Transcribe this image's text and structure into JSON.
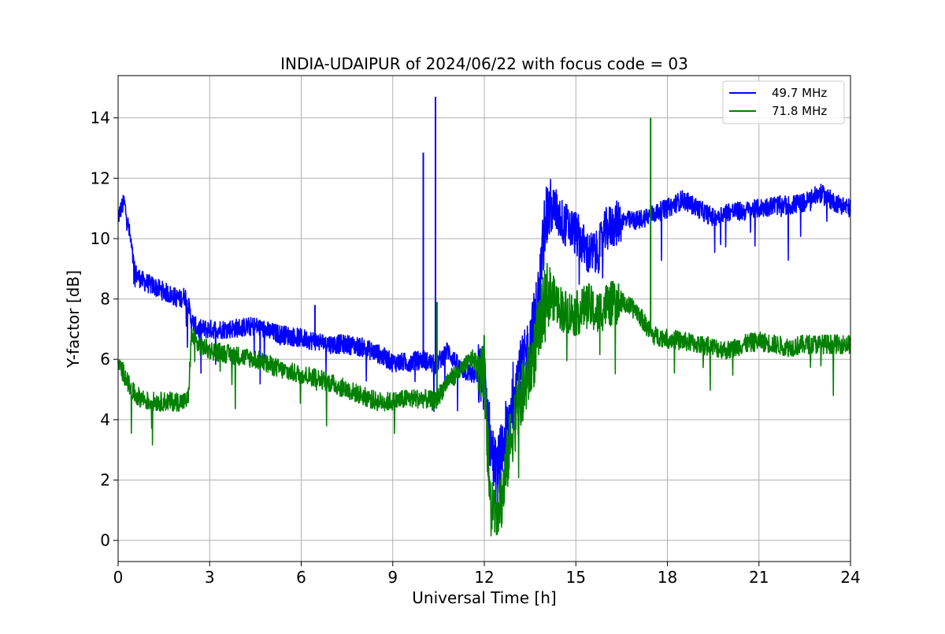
{
  "chart_data": {
    "type": "line",
    "title": "INDIA-UDAIPUR of 2024/06/22 with focus code = 03",
    "xlabel": "Universal Time [h]",
    "ylabel": "Y-factor [dB]",
    "xlim": [
      0,
      24
    ],
    "ylim": [
      -0.7,
      15.4
    ],
    "xticks": [
      0,
      3,
      6,
      9,
      12,
      15,
      18,
      21,
      24
    ],
    "yticks": [
      0,
      2,
      4,
      6,
      8,
      10,
      12,
      14
    ],
    "grid": true,
    "legend_position": "top-right",
    "series": [
      {
        "name": "49.7 MHz",
        "color": "#0000ff",
        "x": [
          0.0,
          0.1,
          0.2,
          0.3,
          0.4,
          0.5,
          0.6,
          0.8,
          1.0,
          1.2,
          1.4,
          1.6,
          1.8,
          2.0,
          2.2,
          2.3,
          2.4,
          2.6,
          3.0,
          3.5,
          4.0,
          4.5,
          5.0,
          5.5,
          6.0,
          6.5,
          7.0,
          7.5,
          8.0,
          8.5,
          9.0,
          9.5,
          10.0,
          10.4,
          10.8,
          11.2,
          11.6,
          12.0,
          12.2,
          12.4,
          12.6,
          12.8,
          13.0,
          13.3,
          13.6,
          13.8,
          14.0,
          14.3,
          14.6,
          15.0,
          15.4,
          15.7,
          16.0,
          16.5,
          17.0,
          17.5,
          18.0,
          18.5,
          19.0,
          19.5,
          20.0,
          20.5,
          21.0,
          21.5,
          22.0,
          22.5,
          23.0,
          23.5,
          24.0
        ],
        "y": [
          10.7,
          11.0,
          11.2,
          10.6,
          10.0,
          9.2,
          8.8,
          8.6,
          8.5,
          8.4,
          8.3,
          8.2,
          8.1,
          8.0,
          8.1,
          7.8,
          7.3,
          7.0,
          7.0,
          7.0,
          7.05,
          7.1,
          6.9,
          6.8,
          6.7,
          6.6,
          6.5,
          6.5,
          6.4,
          6.2,
          5.9,
          5.9,
          6.0,
          5.8,
          6.3,
          5.7,
          5.5,
          5.4,
          3.2,
          2.2,
          3.0,
          4.0,
          5.2,
          5.8,
          7.0,
          8.2,
          10.8,
          11.0,
          10.5,
          10.2,
          9.5,
          9.5,
          10.3,
          10.6,
          10.6,
          10.8,
          11.0,
          11.3,
          11.0,
          10.7,
          10.9,
          10.9,
          11.0,
          11.1,
          11.1,
          11.2,
          11.5,
          11.2,
          11.0
        ]
      },
      {
        "name": "71.8 MHz",
        "color": "#008000",
        "x": [
          0.0,
          0.1,
          0.2,
          0.3,
          0.4,
          0.5,
          0.6,
          0.8,
          1.0,
          1.2,
          1.4,
          1.6,
          1.8,
          2.0,
          2.2,
          2.3,
          2.4,
          2.6,
          3.0,
          3.5,
          4.0,
          4.5,
          5.0,
          5.5,
          6.0,
          6.5,
          7.0,
          7.5,
          8.0,
          8.5,
          9.0,
          9.5,
          10.0,
          10.4,
          10.8,
          11.2,
          11.6,
          12.0,
          12.2,
          12.4,
          12.6,
          12.8,
          13.0,
          13.3,
          13.6,
          13.8,
          14.0,
          14.3,
          14.6,
          15.0,
          15.4,
          15.7,
          16.0,
          16.5,
          17.0,
          17.5,
          18.0,
          18.5,
          19.0,
          19.5,
          20.0,
          20.5,
          21.0,
          21.5,
          22.0,
          22.5,
          23.0,
          23.5,
          24.0
        ],
        "y": [
          5.8,
          5.7,
          5.5,
          5.3,
          5.0,
          4.9,
          4.8,
          4.7,
          4.6,
          4.6,
          4.6,
          4.6,
          4.6,
          4.6,
          4.6,
          4.7,
          6.8,
          6.5,
          6.3,
          6.2,
          6.1,
          6.0,
          5.8,
          5.6,
          5.5,
          5.4,
          5.2,
          5.0,
          4.8,
          4.6,
          4.6,
          4.7,
          4.7,
          4.6,
          5.3,
          5.6,
          6.0,
          5.8,
          1.0,
          1.2,
          1.5,
          3.0,
          4.0,
          5.0,
          6.0,
          7.0,
          8.2,
          8.0,
          7.6,
          7.5,
          7.8,
          7.5,
          7.8,
          7.9,
          7.6,
          6.8,
          6.7,
          6.6,
          6.5,
          6.4,
          6.3,
          6.5,
          6.6,
          6.5,
          6.4,
          6.5,
          6.5,
          6.5,
          6.5
        ]
      }
    ],
    "spikes": [
      {
        "series": "49.7 MHz",
        "x": 10.0,
        "y": 12.85
      },
      {
        "series": "49.7 MHz",
        "x": 10.4,
        "y": 14.7
      },
      {
        "series": "49.7 MHz",
        "x": 6.45,
        "y": 7.8
      },
      {
        "series": "71.8 MHz",
        "x": 17.45,
        "y": 14.0
      },
      {
        "series": "71.8 MHz",
        "x": 10.45,
        "y": 7.9
      }
    ]
  }
}
